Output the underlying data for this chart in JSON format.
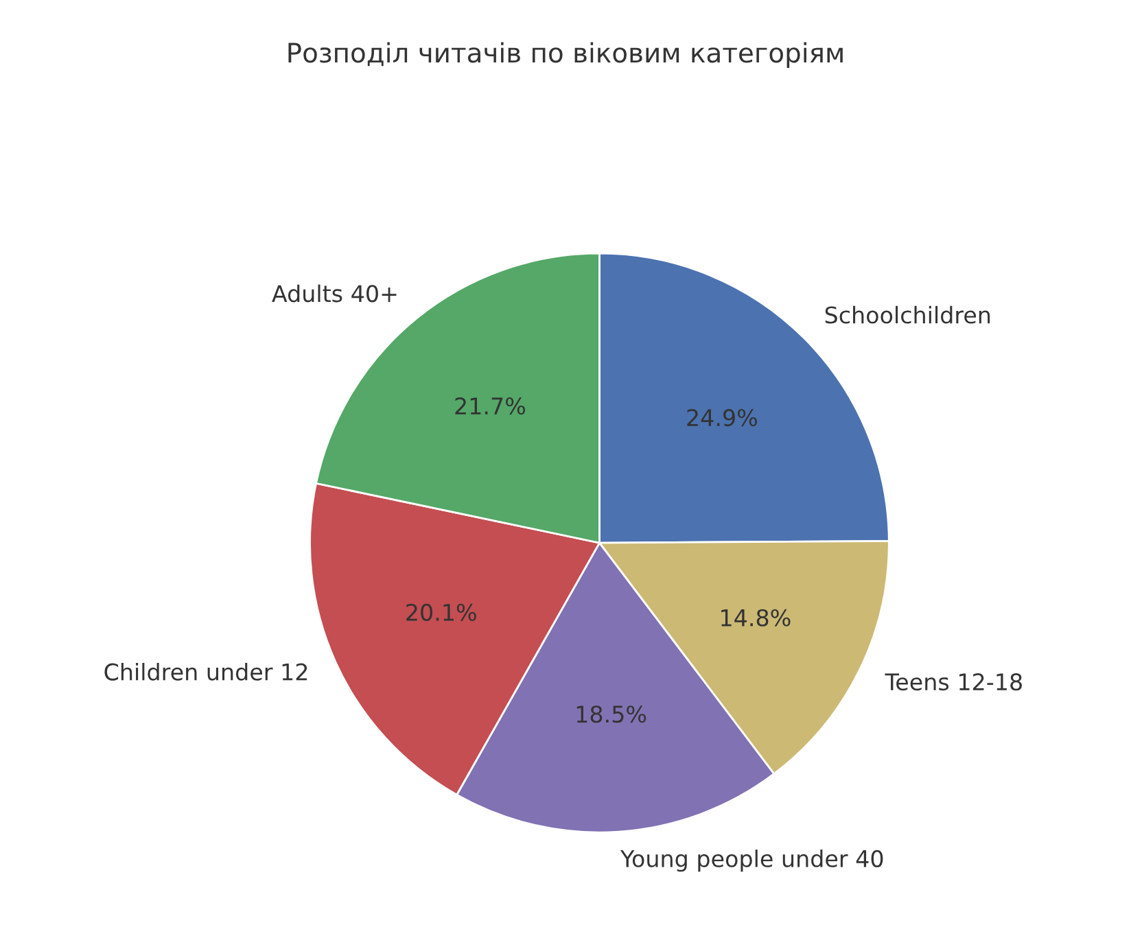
{
  "chart_data": {
    "type": "pie",
    "title": "Розподіл читачів по віковим категоріям",
    "categories": [
      "Schoolchildren",
      "Teens 12-18",
      "Young people under 40",
      "Children under 12",
      "Adults 40+"
    ],
    "values": [
      24.9,
      14.8,
      18.5,
      20.1,
      21.7
    ],
    "colors": [
      "#4c72b0",
      "#ccb974",
      "#8172b3",
      "#c44e52",
      "#55a868"
    ],
    "value_labels": [
      "24.9%",
      "14.8%",
      "18.5%",
      "20.1%",
      "21.7%"
    ]
  }
}
